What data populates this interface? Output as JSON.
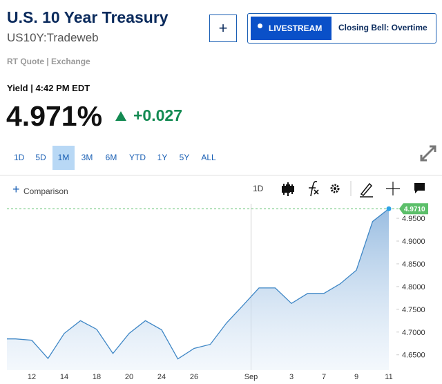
{
  "header": {
    "title": "U.S. 10 Year Treasury",
    "symbol": "US10Y:Tradeweb",
    "add_button": "+",
    "live_badge": "LIVESTREAM",
    "live_show": "Closing Bell: Overtime",
    "source": "RT Quote | Exchange"
  },
  "quote": {
    "label": "Yield | 4:42 PM EDT",
    "last": "4.971%",
    "change": "+0.027"
  },
  "ranges": [
    "1D",
    "5D",
    "1M",
    "3M",
    "6M",
    "YTD",
    "1Y",
    "5Y",
    "ALL"
  ],
  "selected_range_index": 2,
  "toolbar": {
    "comparison": "Comparison",
    "interval": "1D"
  },
  "chart_data": {
    "type": "area",
    "categories": [
      null,
      "12",
      null,
      "14",
      null,
      "18",
      null,
      "20",
      null,
      "24",
      null,
      "26",
      null,
      null,
      "Sep",
      null,
      null,
      "3",
      null,
      "7",
      null,
      "9",
      null,
      "11"
    ],
    "series": [
      {
        "name": "US10Y",
        "color": "#3f87c6",
        "values": [
          4.685,
          4.682,
          4.642,
          4.697,
          4.725,
          4.706,
          4.653,
          4.697,
          4.725,
          4.705,
          4.641,
          4.664,
          4.673,
          4.72,
          4.758,
          4.797,
          4.797,
          4.763,
          4.785,
          4.785,
          4.806,
          4.836,
          4.943,
          4.971
        ],
        "value_labels": [
          null,
          null,
          null,
          null,
          null,
          null,
          null,
          null,
          null,
          null,
          null,
          null,
          null,
          null,
          null,
          null,
          null,
          null,
          null,
          null,
          null,
          null,
          null,
          "4.9710"
        ]
      }
    ],
    "ylim": [
      4.598,
      4.982
    ],
    "yticks": [
      {
        "value": 4.65,
        "label": "4.6500"
      },
      {
        "value": 4.7,
        "label": "4.7000"
      },
      {
        "value": 4.75,
        "label": "4.7500"
      },
      {
        "value": 4.8,
        "label": "4.8000"
      },
      {
        "value": 4.85,
        "label": "4.8500"
      },
      {
        "value": 4.9,
        "label": "4.9000"
      },
      {
        "value": 4.95,
        "label": "4.9500"
      }
    ],
    "grid": false
  }
}
